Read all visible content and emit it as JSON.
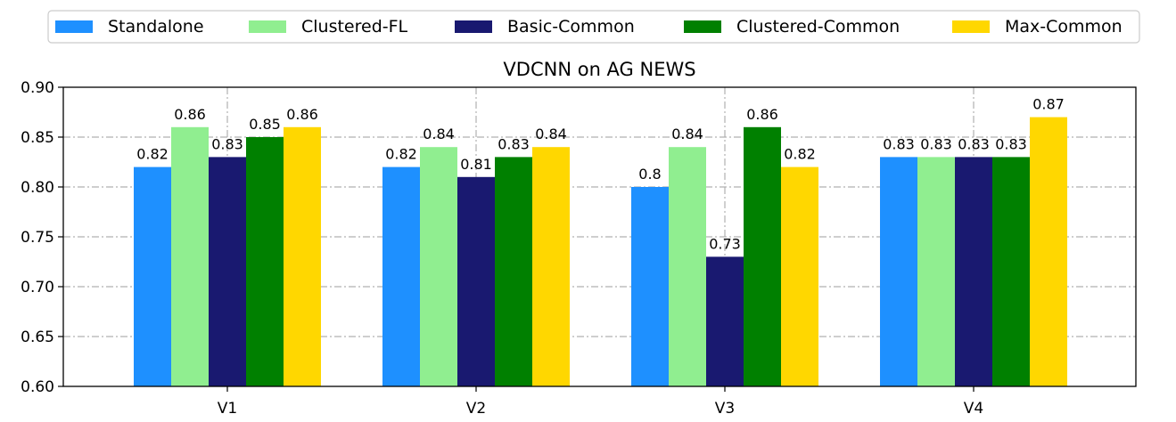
{
  "chart_data": {
    "type": "bar",
    "title": "VDCNN on AG NEWS",
    "xlabel": "",
    "ylabel": "",
    "categories": [
      "V1",
      "V2",
      "V3",
      "V4"
    ],
    "ylim": [
      0.6,
      0.9
    ],
    "yticks": [
      "0.60",
      "0.65",
      "0.70",
      "0.75",
      "0.80",
      "0.85",
      "0.90"
    ],
    "grid": true,
    "legend_position": "top",
    "series": [
      {
        "name": "Standalone",
        "color": "#1e90ff",
        "values": [
          0.82,
          0.82,
          0.8,
          0.83
        ],
        "labels": [
          "0.82",
          "0.82",
          "0.8",
          "0.83"
        ]
      },
      {
        "name": "Clustered-FL",
        "color": "#90ee90",
        "values": [
          0.86,
          0.84,
          0.84,
          0.83
        ],
        "labels": [
          "0.86",
          "0.84",
          "0.84",
          "0.83"
        ]
      },
      {
        "name": "Basic-Common",
        "color": "#191970",
        "values": [
          0.83,
          0.81,
          0.73,
          0.83
        ],
        "labels": [
          "0.83",
          "0.81",
          "0.73",
          "0.83"
        ]
      },
      {
        "name": "Clustered-Common",
        "color": "#008000",
        "values": [
          0.85,
          0.83,
          0.86,
          0.83
        ],
        "labels": [
          "0.85",
          "0.83",
          "0.86",
          "0.83"
        ]
      },
      {
        "name": "Max-Common",
        "color": "#ffd700",
        "values": [
          0.86,
          0.84,
          0.82,
          0.87
        ],
        "labels": [
          "0.86",
          "0.84",
          "0.82",
          "0.87"
        ]
      }
    ]
  }
}
